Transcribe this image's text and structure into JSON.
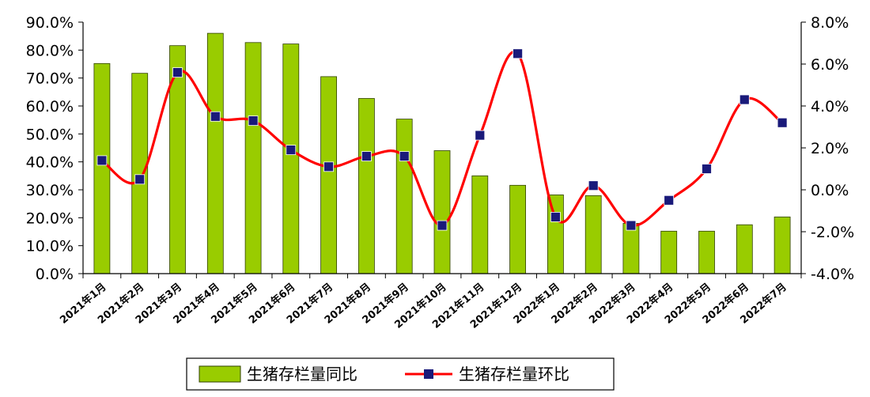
{
  "chart_data": {
    "type": "bar-line",
    "categories": [
      "2021年1月",
      "2021年2月",
      "2021年3月",
      "2021年4月",
      "2021年5月",
      "2021年6月",
      "2021年7月",
      "2021年8月",
      "2021年9月",
      "2021年10月",
      "2021年11月",
      "2021年12月",
      "2022年1月",
      "2022年2月",
      "2022年3月",
      "2022年4月",
      "2022年5月",
      "2022年6月",
      "2022年7月"
    ],
    "series": [
      {
        "name": "生猪存栏量同比",
        "type": "bar",
        "axis": "left",
        "values": [
          75.2,
          71.7,
          81.6,
          86.0,
          82.7,
          82.2,
          70.5,
          62.7,
          55.3,
          44.0,
          35.0,
          31.6,
          28.2,
          27.9,
          18.0,
          15.2,
          15.2,
          17.5,
          20.3
        ]
      },
      {
        "name": "生猪存栏量环比",
        "type": "line",
        "axis": "right",
        "values": [
          1.4,
          0.5,
          5.6,
          3.5,
          3.3,
          1.9,
          1.1,
          1.6,
          1.6,
          -1.7,
          2.6,
          6.5,
          -1.3,
          0.2,
          -1.7,
          -0.5,
          1.0,
          4.3,
          3.2
        ]
      }
    ],
    "y_left": {
      "min": 0,
      "max": 90,
      "ticks": [
        "0.0%",
        "10.0%",
        "20.0%",
        "30.0%",
        "40.0%",
        "50.0%",
        "60.0%",
        "70.0%",
        "80.0%",
        "90.0%"
      ]
    },
    "y_right": {
      "min": -4,
      "max": 8,
      "ticks": [
        "-4.0%",
        "-2.0%",
        "0.0%",
        "2.0%",
        "4.0%",
        "6.0%",
        "8.0%"
      ]
    },
    "grid": false,
    "legend_position": "bottom-center",
    "colors": {
      "bar_fill": "#99cc00",
      "bar_stroke": "#2f3f00",
      "line": "#ff0000",
      "marker": "#1a1a7a",
      "axis": "#000000"
    }
  }
}
